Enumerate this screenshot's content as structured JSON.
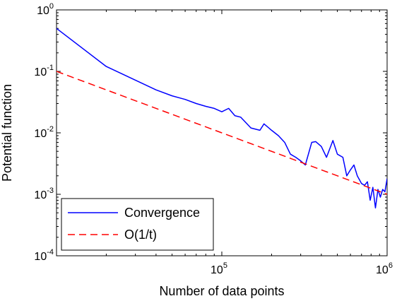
{
  "chart_data": {
    "type": "line",
    "xlabel": "Number of data points",
    "ylabel": "Potential function",
    "x_scale": "log",
    "y_scale": "log",
    "xlim": [
      10000,
      1000000
    ],
    "ylim": [
      0.0001,
      1
    ],
    "grid": false,
    "legend_position": "bottom-left",
    "x_ticks": [
      {
        "value": 100000,
        "base": "10",
        "exp": "5"
      },
      {
        "value": 1000000,
        "base": "10",
        "exp": "6"
      }
    ],
    "y_ticks": [
      {
        "value": 1,
        "base": "10",
        "exp": "0"
      },
      {
        "value": 0.1,
        "base": "10",
        "exp": "-1"
      },
      {
        "value": 0.01,
        "base": "10",
        "exp": "-2"
      },
      {
        "value": 0.001,
        "base": "10",
        "exp": "-3"
      },
      {
        "value": 0.0001,
        "base": "10",
        "exp": "-4"
      }
    ],
    "series": [
      {
        "name": "Convergence",
        "color": "#0000ff",
        "style": "solid",
        "x": [
          10000,
          20000,
          40000,
          50000,
          60000,
          70000,
          80000,
          90000,
          100000,
          110000,
          120000,
          130000,
          150000,
          170000,
          180000,
          200000,
          220000,
          240000,
          260000,
          280000,
          300000,
          320000,
          350000,
          370000,
          400000,
          430000,
          470000,
          500000,
          540000,
          570000,
          600000,
          630000,
          660000,
          700000,
          730000,
          760000,
          790000,
          820000,
          850000,
          880000,
          910000,
          940000,
          970000,
          1000000
        ],
        "y": [
          0.5,
          0.12,
          0.05,
          0.04,
          0.035,
          0.03,
          0.027,
          0.025,
          0.022,
          0.025,
          0.019,
          0.018,
          0.012,
          0.011,
          0.014,
          0.011,
          0.009,
          0.007,
          0.0045,
          0.004,
          0.0035,
          0.003,
          0.007,
          0.0072,
          0.006,
          0.004,
          0.0075,
          0.0045,
          0.004,
          0.002,
          0.0025,
          0.003,
          0.002,
          0.0015,
          0.0014,
          0.0016,
          0.0008,
          0.0013,
          0.0006,
          0.0012,
          0.0009,
          0.0012,
          0.0011,
          0.0018
        ]
      },
      {
        "name": "O(1/t)",
        "color": "#ff0000",
        "style": "dashed",
        "x": [
          10000,
          1000000
        ],
        "y": [
          0.1,
          0.001
        ]
      }
    ]
  }
}
